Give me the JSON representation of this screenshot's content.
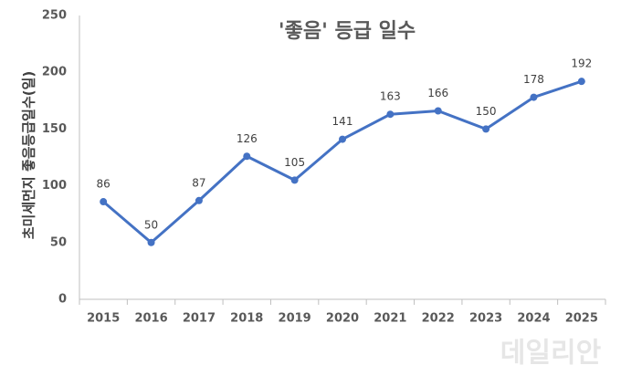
{
  "chart_data": {
    "type": "line",
    "title": "'좋음'  등급 일수",
    "y_label": "초미세먼지 좋음등급일수(일)",
    "categories": [
      "2015",
      "2016",
      "2017",
      "2018",
      "2019",
      "2020",
      "2021",
      "2022",
      "2023",
      "2024",
      "2025"
    ],
    "values": [
      86,
      50,
      87,
      126,
      105,
      141,
      163,
      166,
      150,
      178,
      192
    ],
    "color": "#4472c4",
    "ylim": [
      0,
      250
    ],
    "yticks": [
      0,
      50,
      100,
      150,
      200,
      250
    ],
    "grid": false
  },
  "watermark": "데일리안"
}
